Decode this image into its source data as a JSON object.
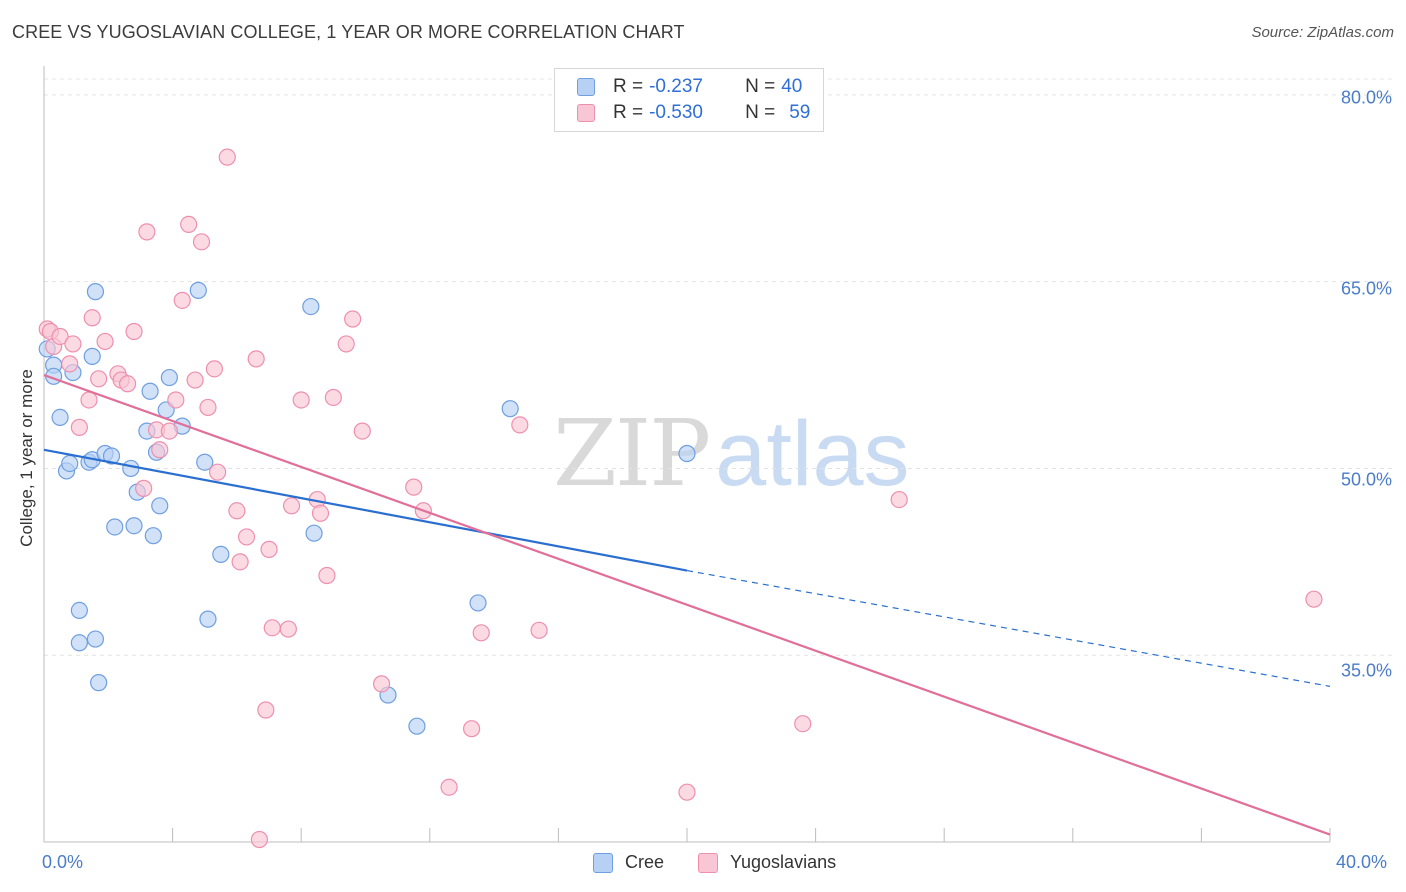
{
  "title": "CREE VS YUGOSLAVIAN COLLEGE, 1 YEAR OR MORE CORRELATION CHART",
  "source": "Source: ZipAtlas.com",
  "watermark": {
    "zip": "ZIP",
    "atlas": "atlas"
  },
  "legend": {
    "rows": [
      {
        "r_label": "R =",
        "r_value": "-0.237",
        "n_label": "N =",
        "n_value": "40",
        "color": "#b7d1f5",
        "stroke": "#6f9fe0"
      },
      {
        "r_label": "R =",
        "r_value": "-0.530",
        "n_label": "N =",
        "n_value": "59",
        "color": "#f9c6d6",
        "stroke": "#ee8fae"
      }
    ],
    "bottom": [
      {
        "label": "Cree",
        "color": "#b7d1f5",
        "stroke": "#6f9fe0"
      },
      {
        "label": "Yugoslavians",
        "color": "#f9c6d6",
        "stroke": "#ee8fae"
      }
    ]
  },
  "chart_data": {
    "type": "scatter",
    "title": "CREE VS YUGOSLAVIAN COLLEGE, 1 YEAR OR MORE CORRELATION CHART",
    "xlabel": "",
    "ylabel": "College, 1 year or more",
    "xlim": [
      0,
      40
    ],
    "ylim": [
      20,
      82
    ],
    "x_tick_labels": [
      "0.0%",
      "40.0%"
    ],
    "y_ticks": [
      35,
      50,
      65,
      80
    ],
    "y_tick_labels": [
      "35.0%",
      "50.0%",
      "65.0%",
      "80.0%"
    ],
    "series": [
      {
        "name": "Cree",
        "color": "#6f9fe0",
        "fill": "#b7d1f5",
        "trend_color": "#2a6fcf",
        "trend": {
          "x0": 0,
          "y0": 51.5,
          "x1": 20,
          "y1": 41.8,
          "dash_x1": 40,
          "dash_y1": 32.5
        },
        "points": [
          [
            0.1,
            59.6
          ],
          [
            0.3,
            58.3
          ],
          [
            0.3,
            57.4
          ],
          [
            0.5,
            54.1
          ],
          [
            0.7,
            49.8
          ],
          [
            0.8,
            50.4
          ],
          [
            0.9,
            57.7
          ],
          [
            1.1,
            38.6
          ],
          [
            1.1,
            36.0
          ],
          [
            1.4,
            50.5
          ],
          [
            1.5,
            50.7
          ],
          [
            1.5,
            59.0
          ],
          [
            1.6,
            64.2
          ],
          [
            1.6,
            36.3
          ],
          [
            1.7,
            32.8
          ],
          [
            1.9,
            51.2
          ],
          [
            2.1,
            51.0
          ],
          [
            2.2,
            45.3
          ],
          [
            2.7,
            50.0
          ],
          [
            2.8,
            45.4
          ],
          [
            2.9,
            48.1
          ],
          [
            3.2,
            53.0
          ],
          [
            3.3,
            56.2
          ],
          [
            3.4,
            44.6
          ],
          [
            3.5,
            51.3
          ],
          [
            3.6,
            47.0
          ],
          [
            3.8,
            54.7
          ],
          [
            3.9,
            57.3
          ],
          [
            4.3,
            53.4
          ],
          [
            4.8,
            64.3
          ],
          [
            5.0,
            50.5
          ],
          [
            5.1,
            37.9
          ],
          [
            5.5,
            43.1
          ],
          [
            8.3,
            63.0
          ],
          [
            8.4,
            44.8
          ],
          [
            10.7,
            31.8
          ],
          [
            11.6,
            29.3
          ],
          [
            13.5,
            39.2
          ],
          [
            14.5,
            54.8
          ],
          [
            20.0,
            51.2
          ]
        ]
      },
      {
        "name": "Yugoslavians",
        "color": "#ee8fae",
        "fill": "#f9c6d6",
        "trend_color": "#e0709a",
        "trend": {
          "x0": 0,
          "y0": 57.5,
          "x1": 40,
          "y1": 20.6
        },
        "points": [
          [
            0.1,
            61.2
          ],
          [
            0.2,
            61.0
          ],
          [
            0.3,
            59.8
          ],
          [
            0.5,
            60.6
          ],
          [
            0.8,
            58.4
          ],
          [
            0.9,
            60.0
          ],
          [
            1.1,
            53.3
          ],
          [
            1.4,
            55.5
          ],
          [
            1.5,
            62.1
          ],
          [
            1.7,
            57.2
          ],
          [
            1.9,
            60.2
          ],
          [
            2.3,
            57.6
          ],
          [
            2.4,
            57.1
          ],
          [
            2.6,
            56.8
          ],
          [
            2.8,
            61.0
          ],
          [
            3.1,
            48.4
          ],
          [
            3.2,
            69.0
          ],
          [
            3.5,
            53.1
          ],
          [
            3.6,
            51.5
          ],
          [
            3.9,
            53.0
          ],
          [
            4.1,
            55.5
          ],
          [
            4.3,
            63.5
          ],
          [
            4.5,
            69.6
          ],
          [
            4.7,
            57.1
          ],
          [
            4.9,
            68.2
          ],
          [
            5.1,
            54.9
          ],
          [
            5.3,
            58.0
          ],
          [
            5.4,
            49.7
          ],
          [
            5.7,
            75.0
          ],
          [
            6.0,
            46.6
          ],
          [
            6.1,
            42.5
          ],
          [
            6.3,
            44.5
          ],
          [
            6.6,
            58.8
          ],
          [
            6.7,
            20.2
          ],
          [
            6.9,
            30.6
          ],
          [
            7.0,
            43.5
          ],
          [
            7.1,
            37.2
          ],
          [
            7.6,
            37.1
          ],
          [
            7.7,
            47.0
          ],
          [
            8.0,
            55.5
          ],
          [
            8.5,
            47.5
          ],
          [
            8.6,
            46.4
          ],
          [
            8.8,
            41.4
          ],
          [
            9.0,
            55.7
          ],
          [
            9.4,
            60.0
          ],
          [
            9.6,
            62.0
          ],
          [
            9.9,
            53.0
          ],
          [
            10.5,
            32.7
          ],
          [
            11.5,
            48.5
          ],
          [
            11.8,
            46.6
          ],
          [
            12.6,
            24.4
          ],
          [
            13.3,
            29.1
          ],
          [
            13.6,
            36.8
          ],
          [
            14.8,
            53.5
          ],
          [
            15.4,
            37.0
          ],
          [
            20.0,
            24.0
          ],
          [
            23.6,
            29.5
          ],
          [
            26.6,
            47.5
          ],
          [
            39.5,
            39.5
          ]
        ]
      }
    ]
  }
}
